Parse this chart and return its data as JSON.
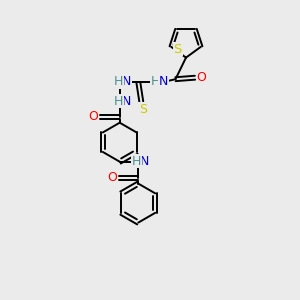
{
  "bg_color": "#ebebeb",
  "bond_color": "#000000",
  "S_color": "#cccc00",
  "O_color": "#ff0000",
  "N_color": "#0000cc",
  "H_color": "#4a9090",
  "fig_width": 3.0,
  "fig_height": 3.0,
  "dpi": 100,
  "xlim": [
    0,
    10
  ],
  "ylim": [
    0,
    10
  ],
  "bond_lw": 1.4,
  "dbl_off": 0.07,
  "font_size": 8.0,
  "hex_r": 0.65,
  "th_r": 0.52
}
